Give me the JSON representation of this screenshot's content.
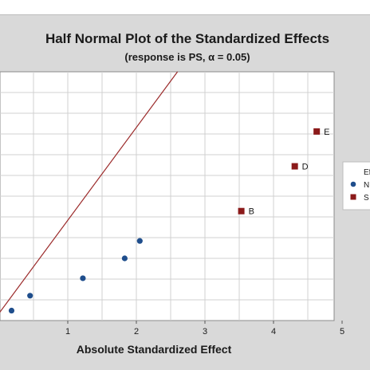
{
  "chart_data": {
    "type": "scatter",
    "title": "Half Normal Plot of the Standardized Effects",
    "subtitle": "(response is PS, α = 0.05)",
    "xlabel": "Absolute Standardized Effect",
    "ylabel": "",
    "xlim": [
      0,
      5
    ],
    "xticks": [
      "1",
      "2",
      "3",
      "4",
      "5"
    ],
    "grid": true,
    "reference_line": {
      "x": [
        0,
        2.6
      ],
      "y_fraction": [
        0.03,
        1.0
      ]
    },
    "legend": {
      "placement": "right",
      "title": "Ef",
      "entries": [
        "N",
        "S"
      ]
    },
    "series": [
      {
        "name": "N",
        "marker": "circle",
        "color": "#1f4e8c",
        "points": [
          {
            "x": 0.18,
            "y_fraction": 0.04,
            "label": ""
          },
          {
            "x": 0.45,
            "y_fraction": 0.1,
            "label": ""
          },
          {
            "x": 1.22,
            "y_fraction": 0.17,
            "label": ""
          },
          {
            "x": 1.83,
            "y_fraction": 0.25,
            "label": ""
          },
          {
            "x": 2.05,
            "y_fraction": 0.32,
            "label": ""
          }
        ]
      },
      {
        "name": "S",
        "marker": "square",
        "color": "#8b1a1a",
        "points": [
          {
            "x": 3.53,
            "y_fraction": 0.44,
            "label": "B"
          },
          {
            "x": 4.31,
            "y_fraction": 0.62,
            "label": "D"
          },
          {
            "x": 4.63,
            "y_fraction": 0.76,
            "label": "E"
          }
        ]
      }
    ]
  },
  "colors": {
    "background": "#d9d9d9",
    "plot_area": "#ffffff",
    "grid": "#d0d0d0",
    "reference_line": "#9b2a2a"
  }
}
